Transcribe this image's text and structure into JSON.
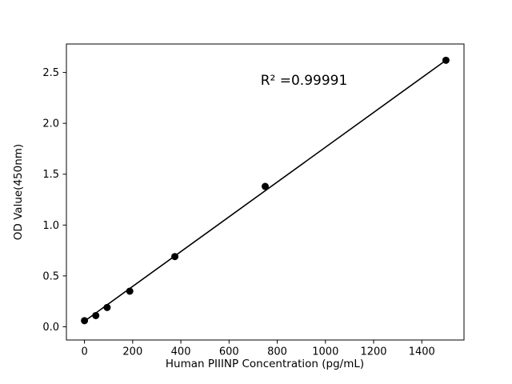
{
  "chart_data": {
    "type": "scatter",
    "title": "",
    "xlabel": "Human PIIINP Concentration (pg/mL)",
    "ylabel": "OD Value(450nm)",
    "annotation": "R² =0.99991",
    "x": [
      0,
      47,
      94,
      188,
      375,
      750,
      1500
    ],
    "y": [
      0.06,
      0.11,
      0.19,
      0.35,
      0.69,
      1.38,
      2.62
    ],
    "fit_line": {
      "x1": 0,
      "y1": 0.055,
      "x2": 1500,
      "y2": 2.62
    },
    "xlim": [
      -75,
      1575
    ],
    "ylim": [
      -0.13,
      2.78
    ],
    "x_ticks": [
      0,
      200,
      400,
      600,
      800,
      1000,
      1200,
      1400
    ],
    "x_tick_labels": [
      "0",
      "200",
      "400",
      "600",
      "800",
      "1000",
      "1200",
      "1400"
    ],
    "y_ticks": [
      0.0,
      0.5,
      1.0,
      1.5,
      2.0,
      2.5
    ],
    "y_tick_labels": [
      "0.0",
      "0.5",
      "1.0",
      "1.5",
      "2.0",
      "2.5"
    ],
    "point_color": "#000000",
    "line_color": "#000000",
    "frame_color": "#000000",
    "background": "#ffffff",
    "grid": false,
    "legend": "none"
  }
}
